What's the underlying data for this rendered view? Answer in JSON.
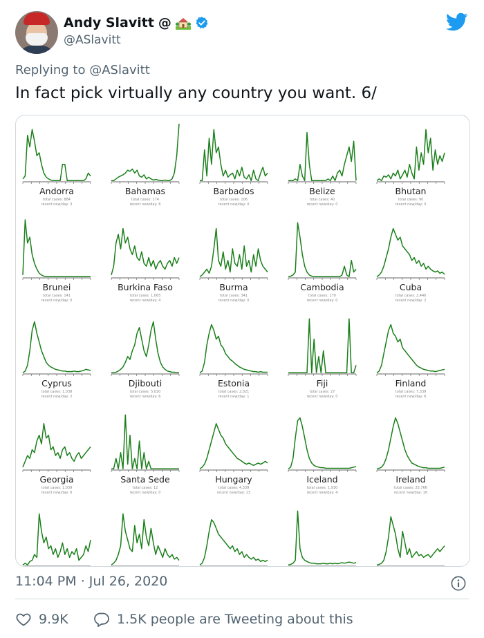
{
  "author": {
    "name": "Andy Slavitt",
    "name_suffix": "@",
    "handle": "@ASlavitt",
    "emoji_icon": "house-with-garden-icon",
    "verified_icon": "verified-badge-icon"
  },
  "reply": {
    "prefix": "Replying to",
    "handle": "@ASlavitt"
  },
  "tweet_text": "In fact pick virtually any country you want. 6/",
  "timestamp": {
    "time": "11:04 PM",
    "separator": "·",
    "date": "Jul 26, 2020"
  },
  "actions": {
    "likes": "9.9K",
    "replies_text": "1.5K people are Tweeting about this"
  },
  "colors": {
    "line": "#1a7f1a",
    "accent": "#1d9bf0",
    "muted": "#536471"
  },
  "chart_data": {
    "type": "line",
    "panels": [
      {
        "country": "Andorra",
        "total": "total cases: 884",
        "recent": "recent new/day: 3",
        "values": [
          0.05,
          0.1,
          0.8,
          0.6,
          0.9,
          0.7,
          0.45,
          0.5,
          0.3,
          0.15,
          0.08,
          0.05,
          0.03,
          0.02,
          0.02,
          0.02,
          0.02,
          0.3,
          0.3,
          0.02,
          0.02,
          0.02,
          0.02,
          0.02,
          0.02,
          0.02,
          0.02,
          0.05,
          0.15,
          0.1
        ]
      },
      {
        "country": "Bahamas",
        "total": "total cases: 174",
        "recent": "recent new/day: 8",
        "values": [
          0.02,
          0.02,
          0.05,
          0.08,
          0.1,
          0.12,
          0.15,
          0.2,
          0.18,
          0.22,
          0.15,
          0.2,
          0.1,
          0.08,
          0.12,
          0.05,
          0.08,
          0.05,
          0.03,
          0.04,
          0.03,
          0.02,
          0.02,
          0.03,
          0.02,
          0.02,
          0.05,
          0.15,
          0.45,
          1.0
        ]
      },
      {
        "country": "Barbados",
        "total": "total cases: 106",
        "recent": "recent new/day: 0",
        "values": [
          0.02,
          0.02,
          0.55,
          0.1,
          0.75,
          0.3,
          0.9,
          0.5,
          0.6,
          0.3,
          0.1,
          0.2,
          0.08,
          0.12,
          0.15,
          0.05,
          0.2,
          0.1,
          0.25,
          0.08,
          0.05,
          0.12,
          0.02,
          0.2,
          0.05,
          0.02,
          0.15,
          0.25,
          0.1,
          0.15
        ]
      },
      {
        "country": "Belize",
        "total": "total cases: 40",
        "recent": "recent new/day: 0",
        "values": [
          0.02,
          0.02,
          0.02,
          0.05,
          0.02,
          0.3,
          0.1,
          0.02,
          0.85,
          0.3,
          0.02,
          0.02,
          0.02,
          0.02,
          0.02,
          0.02,
          0.02,
          0.05,
          0.02,
          0.1,
          0.02,
          0.15,
          0.2,
          0.1,
          0.3,
          0.45,
          0.6,
          0.35,
          0.7,
          0.02
        ]
      },
      {
        "country": "Bhutan",
        "total": "total cases: 90",
        "recent": "recent new/day: 0",
        "values": [
          0.02,
          0.05,
          0.02,
          0.1,
          0.08,
          0.12,
          0.05,
          0.15,
          0.1,
          0.2,
          0.05,
          0.12,
          0.2,
          0.08,
          0.3,
          0.15,
          0.05,
          0.6,
          0.2,
          0.5,
          0.3,
          0.9,
          0.5,
          0.75,
          0.2,
          0.55,
          0.3,
          0.45,
          0.35,
          0.5
        ]
      },
      {
        "country": "Brunei",
        "total": "total cases: 141",
        "recent": "recent new/day: 0",
        "values": [
          0.05,
          1.0,
          0.6,
          0.7,
          0.4,
          0.25,
          0.15,
          0.08,
          0.05,
          0.03,
          0.02,
          0.02,
          0.02,
          0.02,
          0.02,
          0.02,
          0.02,
          0.02,
          0.02,
          0.02,
          0.02,
          0.02,
          0.02,
          0.02,
          0.02,
          0.02,
          0.02,
          0.02,
          0.02,
          0.02
        ]
      },
      {
        "country": "Burkina Faso",
        "total": "total cases: 1,065",
        "recent": "recent new/day: 4",
        "values": [
          0.05,
          0.2,
          0.6,
          0.75,
          0.5,
          0.85,
          0.6,
          0.7,
          0.5,
          0.4,
          0.55,
          0.35,
          0.3,
          0.45,
          0.25,
          0.2,
          0.35,
          0.2,
          0.3,
          0.15,
          0.25,
          0.3,
          0.2,
          0.15,
          0.25,
          0.3,
          0.2,
          0.35,
          0.25,
          0.35
        ]
      },
      {
        "country": "Burma",
        "total": "total cases: 341",
        "recent": "recent new/day: 0",
        "values": [
          0.02,
          0.05,
          0.1,
          0.15,
          0.08,
          0.2,
          0.5,
          0.85,
          0.3,
          0.2,
          0.45,
          0.15,
          0.3,
          0.1,
          0.5,
          0.25,
          0.2,
          0.4,
          0.15,
          0.55,
          0.2,
          0.3,
          0.1,
          0.4,
          0.2,
          0.5,
          0.3,
          0.2,
          0.15,
          0.1
        ]
      },
      {
        "country": "Cambodia",
        "total": "total cases: 170",
        "recent": "recent new/day: 0",
        "values": [
          0.02,
          0.03,
          0.05,
          0.1,
          0.95,
          0.7,
          0.4,
          0.2,
          0.1,
          0.05,
          0.03,
          0.02,
          0.02,
          0.02,
          0.02,
          0.02,
          0.02,
          0.02,
          0.02,
          0.02,
          0.02,
          0.02,
          0.02,
          0.05,
          0.2,
          0.05,
          0.02,
          0.3,
          0.1,
          0.15
        ]
      },
      {
        "country": "Cuba",
        "total": "total cases: 2,446",
        "recent": "recent new/day: 2",
        "values": [
          0.02,
          0.05,
          0.1,
          0.2,
          0.35,
          0.5,
          0.7,
          0.85,
          0.75,
          0.65,
          0.7,
          0.55,
          0.5,
          0.45,
          0.4,
          0.3,
          0.35,
          0.25,
          0.3,
          0.2,
          0.25,
          0.15,
          0.2,
          0.15,
          0.12,
          0.1,
          0.12,
          0.08,
          0.1,
          0.06
        ]
      },
      {
        "country": "Cyprus",
        "total": "total cases: 1,038",
        "recent": "recent new/day: 2",
        "values": [
          0.02,
          0.05,
          0.15,
          0.4,
          0.75,
          0.9,
          0.7,
          0.55,
          0.4,
          0.3,
          0.2,
          0.15,
          0.12,
          0.1,
          0.08,
          0.07,
          0.06,
          0.05,
          0.05,
          0.04,
          0.04,
          0.04,
          0.05,
          0.04,
          0.04,
          0.05,
          0.06,
          0.08,
          0.07,
          0.06
        ]
      },
      {
        "country": "Djibouti",
        "total": "total cases: 5,020",
        "recent": "recent new/day: 6",
        "values": [
          0.02,
          0.02,
          0.03,
          0.05,
          0.08,
          0.12,
          0.2,
          0.3,
          0.25,
          0.4,
          0.5,
          0.7,
          0.8,
          0.6,
          0.4,
          0.3,
          0.5,
          0.75,
          0.9,
          0.6,
          0.35,
          0.2,
          0.12,
          0.08,
          0.05,
          0.04,
          0.03,
          0.03,
          0.02,
          0.02
        ]
      },
      {
        "country": "Estonia",
        "total": "total cases: 2,021",
        "recent": "recent new/day: 1",
        "values": [
          0.02,
          0.05,
          0.2,
          0.5,
          0.7,
          0.85,
          0.75,
          0.6,
          0.65,
          0.5,
          0.45,
          0.35,
          0.3,
          0.25,
          0.22,
          0.18,
          0.15,
          0.12,
          0.1,
          0.08,
          0.07,
          0.06,
          0.05,
          0.04,
          0.04,
          0.03,
          0.04,
          0.03,
          0.03,
          0.03
        ]
      },
      {
        "country": "Fiji",
        "total": "total cases: 27",
        "recent": "recent new/day: 0",
        "values": [
          0.02,
          0.02,
          0.02,
          0.02,
          0.02,
          0.02,
          0.02,
          0.02,
          0.02,
          0.95,
          0.02,
          0.6,
          0.02,
          0.3,
          0.02,
          0.4,
          0.02,
          0.02,
          0.02,
          0.02,
          0.02,
          0.02,
          0.02,
          0.02,
          0.02,
          0.02,
          0.95,
          0.02,
          0.02,
          0.15
        ]
      },
      {
        "country": "Finland",
        "total": "total cases: 7,339",
        "recent": "recent new/day: 6",
        "values": [
          0.02,
          0.05,
          0.15,
          0.35,
          0.55,
          0.75,
          0.85,
          0.7,
          0.65,
          0.55,
          0.6,
          0.45,
          0.4,
          0.35,
          0.3,
          0.25,
          0.2,
          0.15,
          0.12,
          0.1,
          0.08,
          0.07,
          0.06,
          0.05,
          0.05,
          0.04,
          0.05,
          0.06,
          0.07,
          0.08
        ]
      },
      {
        "country": "Georgia",
        "total": "total cases: 1,039",
        "recent": "recent new/day: 6",
        "values": [
          0.05,
          0.15,
          0.25,
          0.2,
          0.35,
          0.3,
          0.5,
          0.6,
          0.45,
          0.8,
          0.55,
          0.6,
          0.35,
          0.4,
          0.25,
          0.3,
          0.2,
          0.35,
          0.4,
          0.25,
          0.3,
          0.2,
          0.15,
          0.25,
          0.3,
          0.2,
          0.25,
          0.3,
          0.35,
          0.4
        ]
      },
      {
        "country": "Santa Sede",
        "total": "total cases: 12",
        "recent": "recent new/day: 0",
        "values": [
          0.02,
          0.02,
          0.2,
          0.02,
          0.3,
          0.02,
          0.95,
          0.1,
          0.6,
          0.02,
          0.2,
          0.02,
          0.5,
          0.02,
          0.3,
          0.02,
          0.15,
          0.02,
          0.02,
          0.02,
          0.02,
          0.02,
          0.02,
          0.02,
          0.02,
          0.02,
          0.02,
          0.02,
          0.02,
          0.02
        ]
      },
      {
        "country": "Hungary",
        "total": "total cases: 4,339",
        "recent": "recent new/day: 13",
        "values": [
          0.02,
          0.05,
          0.1,
          0.2,
          0.35,
          0.5,
          0.65,
          0.8,
          0.7,
          0.6,
          0.55,
          0.45,
          0.4,
          0.35,
          0.3,
          0.25,
          0.2,
          0.18,
          0.15,
          0.12,
          0.1,
          0.12,
          0.1,
          0.08,
          0.1,
          0.12,
          0.1,
          0.12,
          0.15,
          0.12
        ]
      },
      {
        "country": "Iceland",
        "total": "total cases: 1,930",
        "recent": "recent new/day: 4",
        "values": [
          0.02,
          0.05,
          0.2,
          0.55,
          0.85,
          0.9,
          0.75,
          0.55,
          0.35,
          0.2,
          0.12,
          0.08,
          0.06,
          0.05,
          0.04,
          0.04,
          0.03,
          0.03,
          0.03,
          0.03,
          0.03,
          0.03,
          0.03,
          0.03,
          0.03,
          0.03,
          0.03,
          0.04,
          0.05,
          0.06
        ]
      },
      {
        "country": "Ireland",
        "total": "total cases: 25,766",
        "recent": "recent new/day: 18",
        "values": [
          0.02,
          0.03,
          0.05,
          0.1,
          0.2,
          0.35,
          0.55,
          0.75,
          0.9,
          0.8,
          0.65,
          0.5,
          0.35,
          0.25,
          0.18,
          0.12,
          0.1,
          0.08,
          0.06,
          0.05,
          0.04,
          0.04,
          0.03,
          0.03,
          0.03,
          0.03,
          0.03,
          0.03,
          0.04,
          0.05
        ]
      },
      {
        "country": "",
        "total": "",
        "recent": "",
        "values": [
          0.02,
          0.05,
          0.02,
          0.08,
          0.1,
          0.2,
          0.15,
          0.9,
          0.6,
          0.4,
          0.5,
          0.3,
          0.35,
          0.2,
          0.3,
          0.15,
          0.25,
          0.4,
          0.2,
          0.3,
          0.15,
          0.25,
          0.2,
          0.3,
          0.1,
          0.15,
          0.2,
          0.35,
          0.25,
          0.45
        ]
      },
      {
        "country": "",
        "total": "",
        "recent": "",
        "values": [
          0.02,
          0.05,
          0.1,
          0.2,
          0.35,
          0.9,
          0.6,
          0.45,
          0.3,
          0.25,
          0.7,
          0.4,
          0.55,
          0.3,
          0.8,
          0.5,
          0.35,
          0.65,
          0.4,
          0.2,
          0.35,
          0.25,
          0.15,
          0.3,
          0.2,
          0.15,
          0.2,
          0.12,
          0.15,
          0.1
        ]
      },
      {
        "country": "",
        "total": "",
        "recent": "",
        "values": [
          0.02,
          0.05,
          0.15,
          0.35,
          0.6,
          0.8,
          0.75,
          0.65,
          0.55,
          0.5,
          0.45,
          0.4,
          0.35,
          0.3,
          0.35,
          0.25,
          0.3,
          0.2,
          0.25,
          0.15,
          0.2,
          0.15,
          0.12,
          0.15,
          0.1,
          0.12,
          0.08,
          0.1,
          0.08,
          0.1
        ]
      },
      {
        "country": "",
        "total": "",
        "recent": "",
        "values": [
          0.02,
          0.03,
          0.05,
          0.1,
          0.95,
          0.3,
          0.15,
          0.1,
          0.08,
          0.06,
          0.05,
          0.05,
          0.04,
          0.04,
          0.04,
          0.05,
          0.04,
          0.04,
          0.05,
          0.04,
          0.05,
          0.04,
          0.05,
          0.06,
          0.05,
          0.06,
          0.07,
          0.06,
          0.05,
          0.06
        ]
      },
      {
        "country": "",
        "total": "",
        "recent": "",
        "values": [
          0.02,
          0.03,
          0.05,
          0.1,
          0.25,
          0.5,
          0.85,
          0.7,
          0.55,
          0.3,
          0.15,
          0.6,
          0.4,
          0.2,
          0.3,
          0.15,
          0.2,
          0.25,
          0.18,
          0.2,
          0.15,
          0.18,
          0.2,
          0.15,
          0.2,
          0.25,
          0.3,
          0.25,
          0.3,
          0.35
        ]
      }
    ]
  }
}
